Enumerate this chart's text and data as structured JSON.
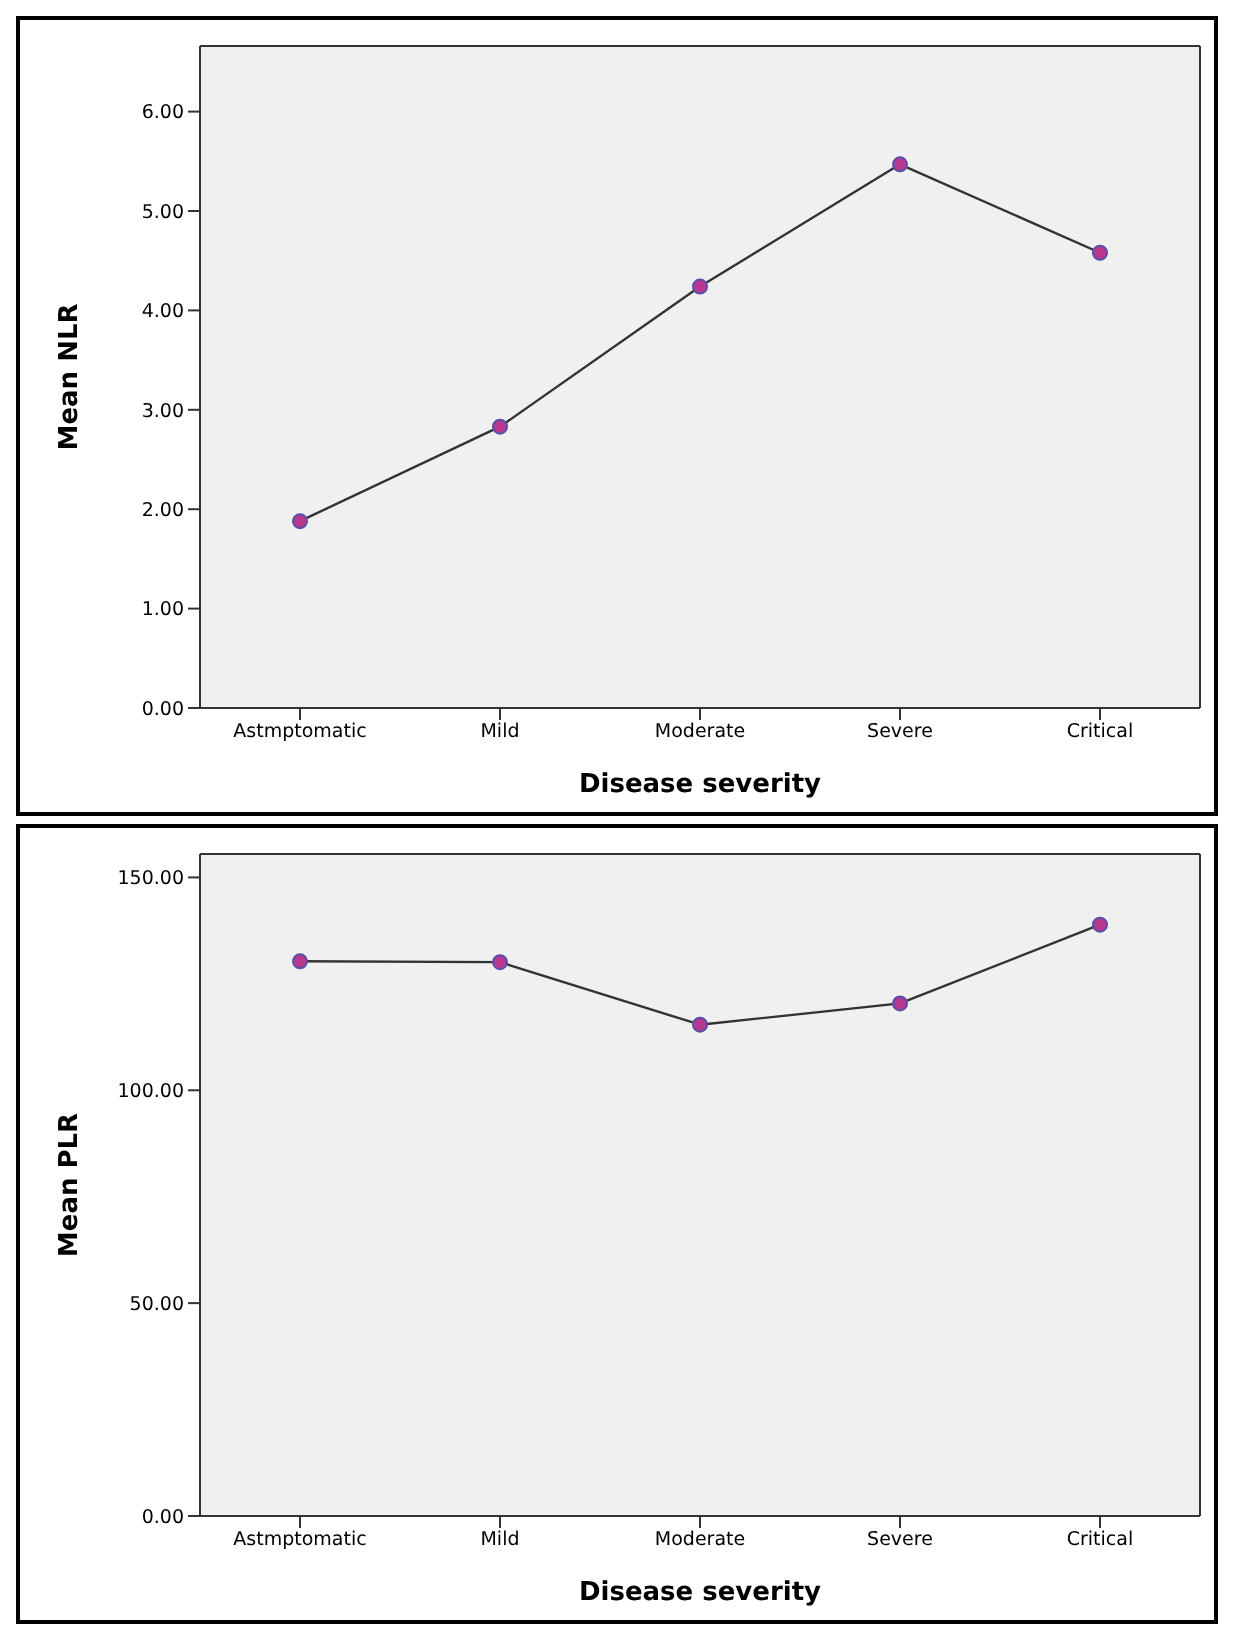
{
  "chart_data": [
    {
      "type": "line",
      "xlabel": "Disease severity",
      "ylabel": "Mean NLR",
      "categories": [
        "Astmptomatic",
        "Mild",
        "Moderate",
        "Severe",
        "Critical"
      ],
      "series": [
        {
          "color": "#b8388f",
          "values": [
            1.88,
            2.83,
            4.24,
            5.47,
            4.58
          ]
        }
      ],
      "ylim": [
        0,
        6.66
      ],
      "yticks": [
        {
          "value": 0,
          "label": "0.00"
        },
        {
          "value": 1,
          "label": "1.00"
        },
        {
          "value": 2,
          "label": "2.00"
        },
        {
          "value": 3,
          "label": "3.00"
        },
        {
          "value": 4,
          "label": "4.00"
        },
        {
          "value": 5,
          "label": "5.00"
        },
        {
          "value": 6,
          "label": "6.00"
        }
      ],
      "marker": "circle",
      "line_style": "solid"
    },
    {
      "type": "line",
      "xlabel": "Disease severity",
      "ylabel": "Mean PLR",
      "categories": [
        "Astmptomatic",
        "Mild",
        "Moderate",
        "Severe",
        "Critical"
      ],
      "series": [
        {
          "color": "#b8388f",
          "values": [
            130.3,
            130.1,
            115.4,
            120.4,
            138.9
          ]
        }
      ],
      "ylim": [
        0,
        155.5
      ],
      "yticks": [
        {
          "value": 0,
          "label": "0.00"
        },
        {
          "value": 50,
          "label": "50.00"
        },
        {
          "value": 100,
          "label": "100.00"
        },
        {
          "value": 150,
          "label": "150.00"
        }
      ],
      "marker": "circle",
      "line_style": "solid"
    }
  ]
}
